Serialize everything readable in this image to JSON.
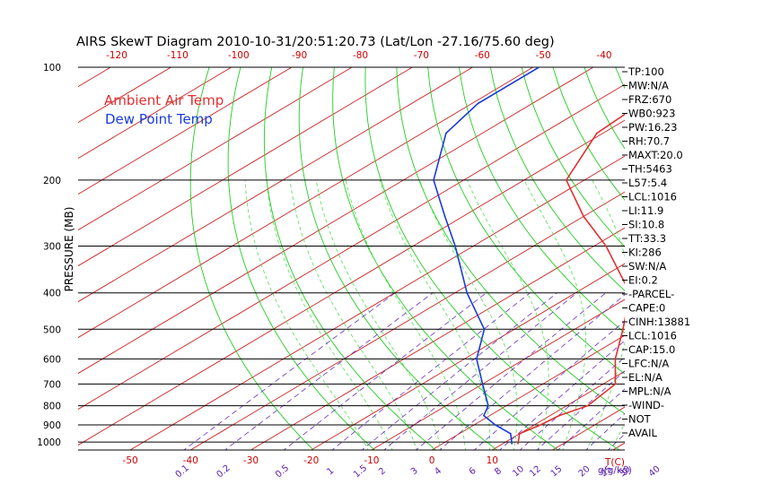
{
  "chart_data": {
    "type": "line",
    "title": "AIRS SkewT Diagram 2010-10-31/20:51:20.73 (Lat/Lon -27.16/75.60 deg)",
    "ylabel": "PRESSURE (MB)",
    "xlabel": "T(C)",
    "mixing_ratio_unit": "g(g/kg)",
    "legend": [
      {
        "name": "Ambient Air Temp",
        "color": "#e03030"
      },
      {
        "name": "Dew Point Temp",
        "color": "#1a3cd8"
      }
    ],
    "legend_placement": "top-left",
    "y_scale": "log",
    "ylim": [
      1050,
      100
    ],
    "pressure_ticks": [
      100,
      200,
      300,
      400,
      500,
      600,
      700,
      800,
      900,
      1000
    ],
    "temp_ticks_bottom": [
      -50,
      -40,
      -30,
      -20,
      -10,
      0,
      10
    ],
    "temp_ticks_top": [
      -120,
      -110,
      -100,
      -90,
      -80,
      -70,
      -60,
      -50,
      -40
    ],
    "mixing_ratio_labels": [
      "0.1",
      "0.2",
      "0.5",
      "1",
      "1.5",
      "2",
      "3",
      "4",
      "6",
      "8",
      "10",
      "12",
      "15",
      "20",
      "25",
      "30",
      "40"
    ],
    "series": [
      {
        "name": "Ambient Air Temp",
        "color": "#e03030",
        "points": [
          {
            "p": 1010,
            "t": 12.5
          },
          {
            "p": 950,
            "t": 10.0
          },
          {
            "p": 900,
            "t": 11.0
          },
          {
            "p": 850,
            "t": 11.5
          },
          {
            "p": 800,
            "t": 13.5
          },
          {
            "p": 700,
            "t": 12.0
          },
          {
            "p": 600,
            "t": 5.0
          },
          {
            "p": 500,
            "t": -2.0
          },
          {
            "p": 400,
            "t": -11.0
          },
          {
            "p": 300,
            "t": -28.0
          },
          {
            "p": 250,
            "t": -40.0
          },
          {
            "p": 200,
            "t": -53.0
          },
          {
            "p": 150,
            "t": -61.0
          },
          {
            "p": 125,
            "t": -62.0
          },
          {
            "p": 100,
            "t": -66.0
          }
        ]
      },
      {
        "name": "Dew Point Temp",
        "color": "#1a3cd8",
        "points": [
          {
            "p": 1010,
            "t": 11.5
          },
          {
            "p": 950,
            "t": 8.5
          },
          {
            "p": 900,
            "t": 3.5
          },
          {
            "p": 850,
            "t": -1.0
          },
          {
            "p": 800,
            "t": -3.0
          },
          {
            "p": 700,
            "t": -10.0
          },
          {
            "p": 600,
            "t": -18.0
          },
          {
            "p": 500,
            "t": -25.0
          },
          {
            "p": 400,
            "t": -38.0
          },
          {
            "p": 300,
            "t": -53.0
          },
          {
            "p": 250,
            "t": -63.0
          },
          {
            "p": 200,
            "t": -75.0
          },
          {
            "p": 150,
            "t": -86.0
          },
          {
            "p": 125,
            "t": -89.0
          },
          {
            "p": 100,
            "t": -89.0
          }
        ]
      }
    ]
  },
  "stats": [
    "TP:100",
    "MW:N/A",
    "FRZ:670",
    "WB0:923",
    "PW:16.23",
    "RH:70.7",
    "MAXT:20.0",
    "TH:5463",
    "L57:5.4",
    "LCL:1016",
    "LI:11.9",
    "SI:10.8",
    "TT:33.3",
    "KI:286",
    "SW:N/A",
    "EI:0.2",
    "-PARCEL-",
    "CAPE:0",
    "CINH:13881",
    "LCL:1016",
    "CAP:15.0",
    "LFC:N/A",
    "EL:N/A",
    "MPL:N/A",
    "-WIND-",
    "NOT",
    "AVAIL"
  ],
  "colors": {
    "dry_adiabat": "#22cc22",
    "moist_adiabat": "#55dd55",
    "isotherm": "#cc2222",
    "mixing_ratio": "#6a2fc0",
    "isobar": "#000000",
    "axis_label_red": "#cc0000",
    "axis_label_purple": "#5a1fb0"
  }
}
